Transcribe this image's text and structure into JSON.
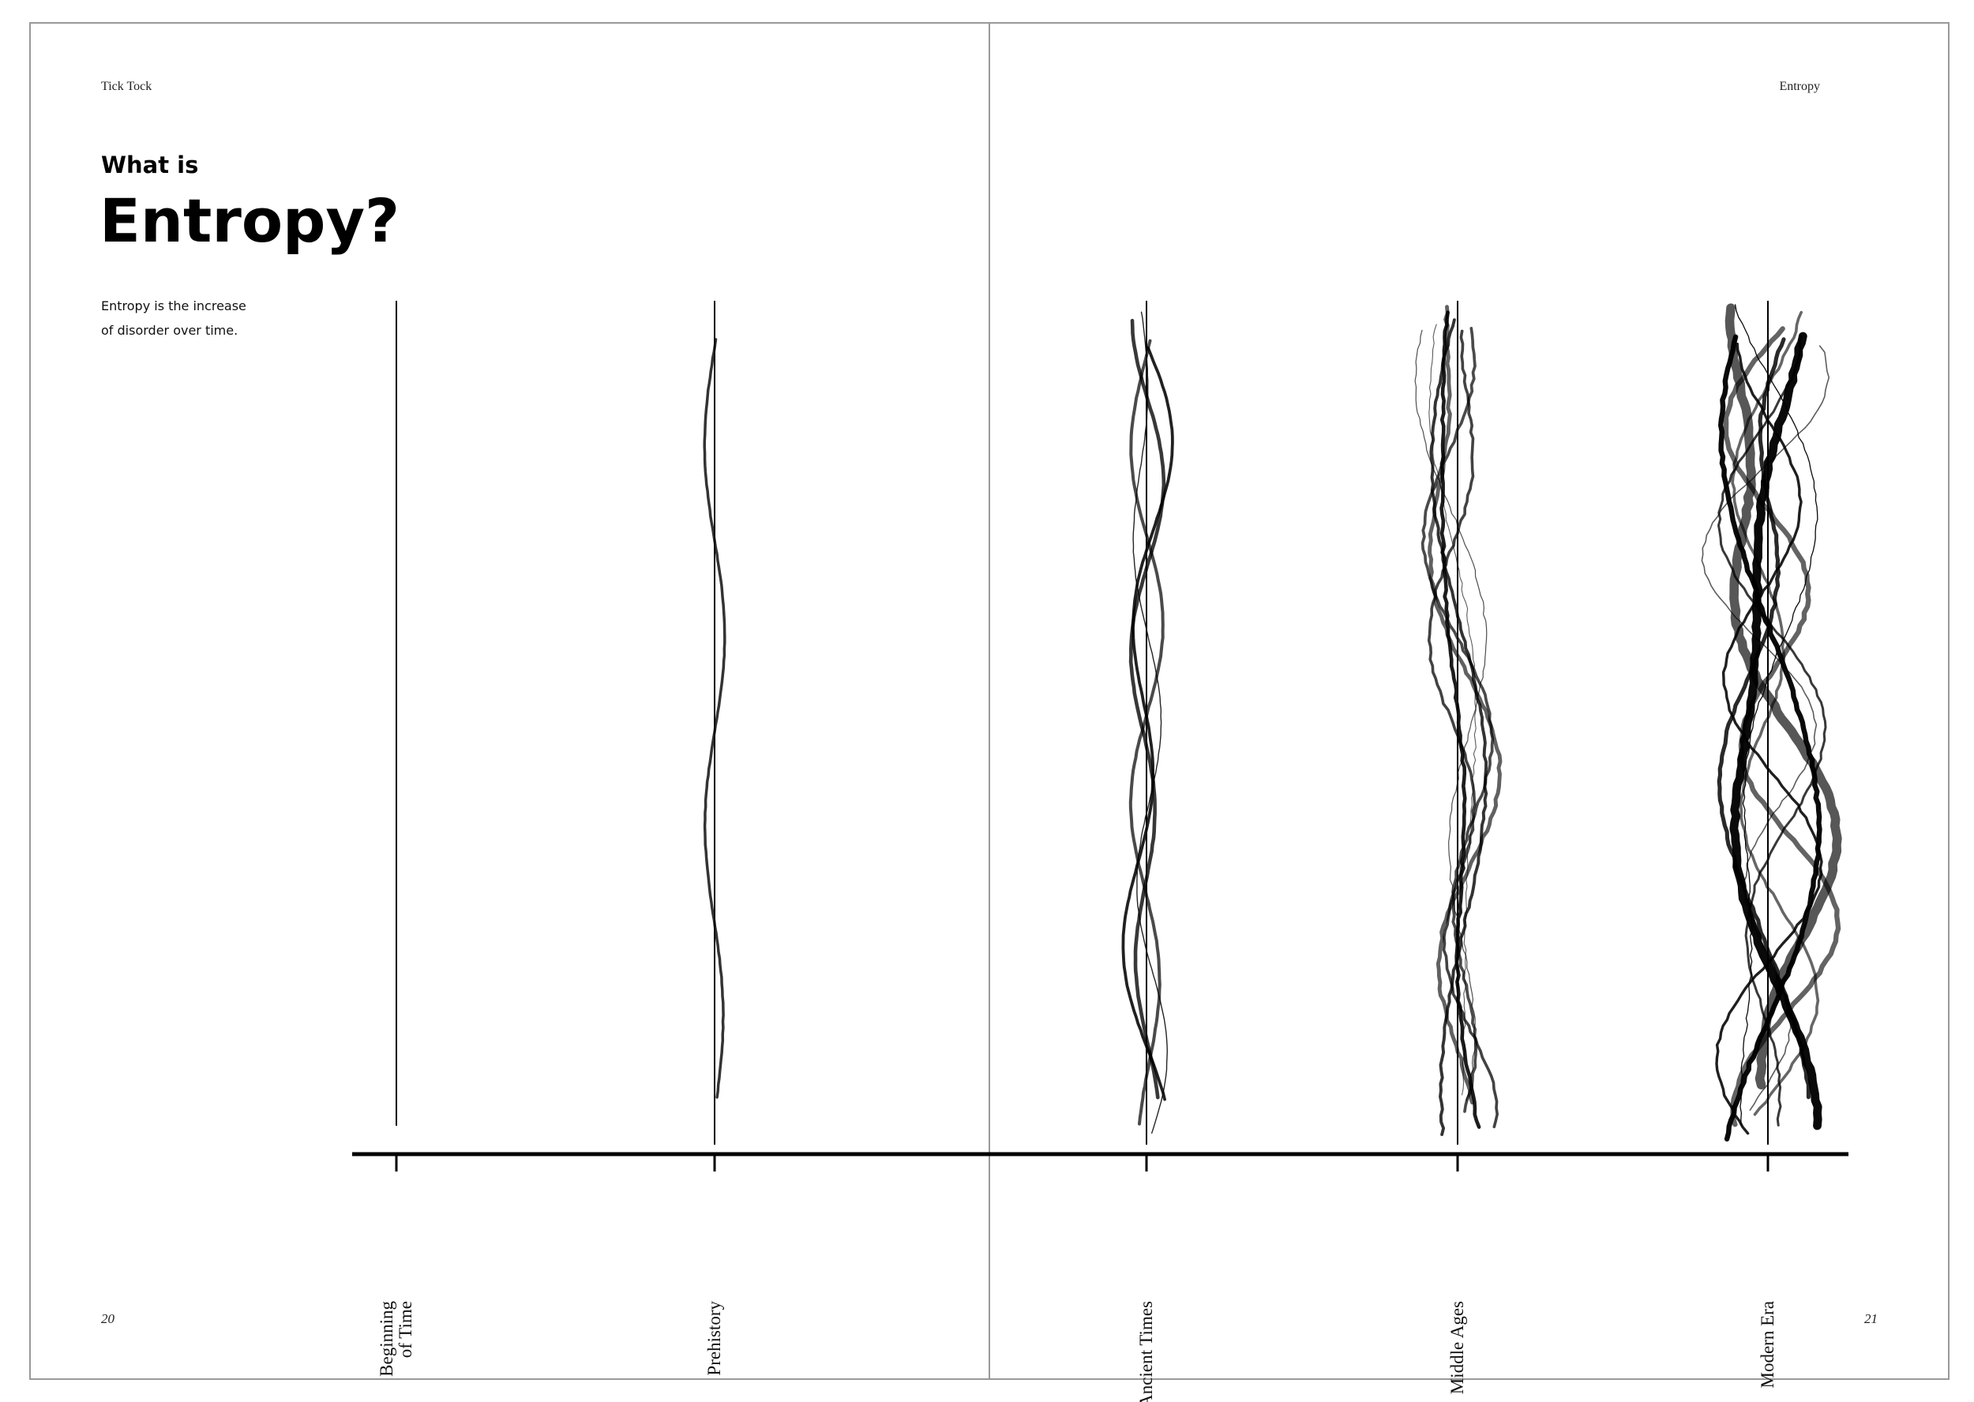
{
  "header": {
    "left": "Tick Tock",
    "right": "Entropy"
  },
  "heading": {
    "kicker": "What is",
    "title": "Entropy?"
  },
  "intro": [
    "Entropy is the increase",
    "of disorder over time."
  ],
  "timeline": {
    "eras": [
      {
        "label": [
          "Beginning",
          "of Time"
        ]
      },
      {
        "label": [
          "Prehistory"
        ]
      },
      {
        "label": [
          "Ancient Times"
        ]
      },
      {
        "label": [
          "Middle Ages"
        ]
      },
      {
        "label": [
          "Modern Era"
        ]
      }
    ]
  },
  "footer": {
    "left": "20",
    "right": "21"
  }
}
